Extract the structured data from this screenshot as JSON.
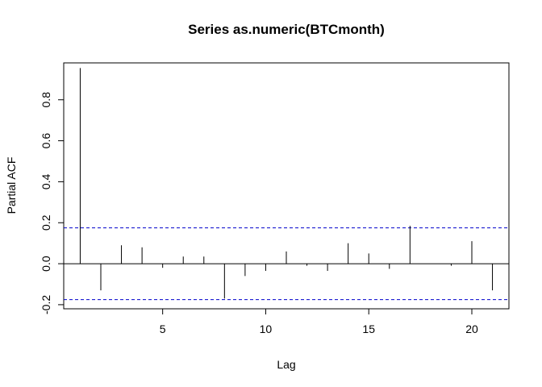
{
  "chart_data": {
    "type": "bar",
    "title": "Series  as.numeric(BTCmonth)",
    "xlabel": "Lag",
    "ylabel": "Partial ACF",
    "xlim": [
      0.2,
      21.8
    ],
    "ylim": [
      -0.22,
      0.98
    ],
    "x_ticks": [
      5,
      10,
      15,
      20
    ],
    "y_ticks": [
      -0.2,
      0.0,
      0.2,
      0.4,
      0.6,
      0.8
    ],
    "y_tick_labels": [
      "-0.2",
      "0.0",
      "0.2",
      "0.4",
      "0.6",
      "0.8"
    ],
    "x": [
      1,
      2,
      3,
      4,
      5,
      6,
      7,
      8,
      9,
      10,
      11,
      12,
      13,
      14,
      15,
      16,
      17,
      18,
      19,
      20,
      21
    ],
    "values": [
      0.955,
      -0.13,
      0.09,
      0.08,
      -0.02,
      0.035,
      0.035,
      -0.17,
      -0.06,
      -0.035,
      0.06,
      -0.01,
      -0.035,
      0.1,
      0.05,
      -0.025,
      0.185,
      0.0,
      -0.01,
      0.11,
      -0.13
    ],
    "ci_upper": 0.175,
    "ci_lower": -0.175,
    "ci_color": "#0000cc",
    "line_color": "#000000"
  }
}
